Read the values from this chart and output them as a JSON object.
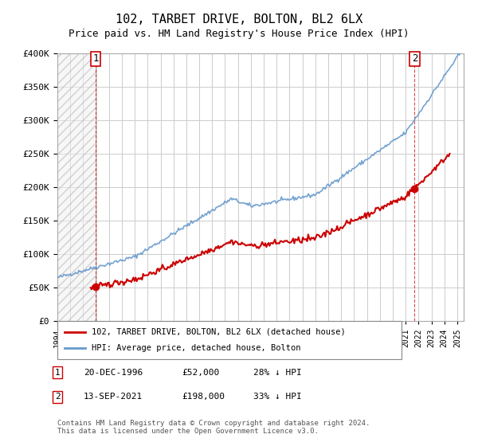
{
  "title": "102, TARBET DRIVE, BOLTON, BL2 6LX",
  "subtitle": "Price paid vs. HM Land Registry's House Price Index (HPI)",
  "ylim": [
    0,
    400000
  ],
  "yticks": [
    0,
    50000,
    100000,
    150000,
    200000,
    250000,
    300000,
    350000,
    400000
  ],
  "ytick_labels": [
    "£0",
    "£50K",
    "£100K",
    "£150K",
    "£200K",
    "£250K",
    "£300K",
    "£350K",
    "£400K"
  ],
  "xlim_start": 1994.0,
  "xlim_end": 2025.5,
  "hpi_color": "#6699cc",
  "price_color": "#cc0000",
  "marker_color": "#cc0000",
  "point1_x": 1996.97,
  "point1_y": 52000,
  "point1_label": "1",
  "point1_date": "20-DEC-1996",
  "point1_price": "£52,000",
  "point1_note": "28% ↓ HPI",
  "point2_x": 2021.7,
  "point2_y": 198000,
  "point2_label": "2",
  "point2_date": "13-SEP-2021",
  "point2_price": "£198,000",
  "point2_note": "33% ↓ HPI",
  "legend_property": "102, TARBET DRIVE, BOLTON, BL2 6LX (detached house)",
  "legend_hpi": "HPI: Average price, detached house, Bolton",
  "footer": "Contains HM Land Registry data © Crown copyright and database right 2024.\nThis data is licensed under the Open Government Licence v3.0.",
  "bg_color": "#ffffff",
  "plot_bg_color": "#ffffff",
  "grid_color": "#cccccc"
}
